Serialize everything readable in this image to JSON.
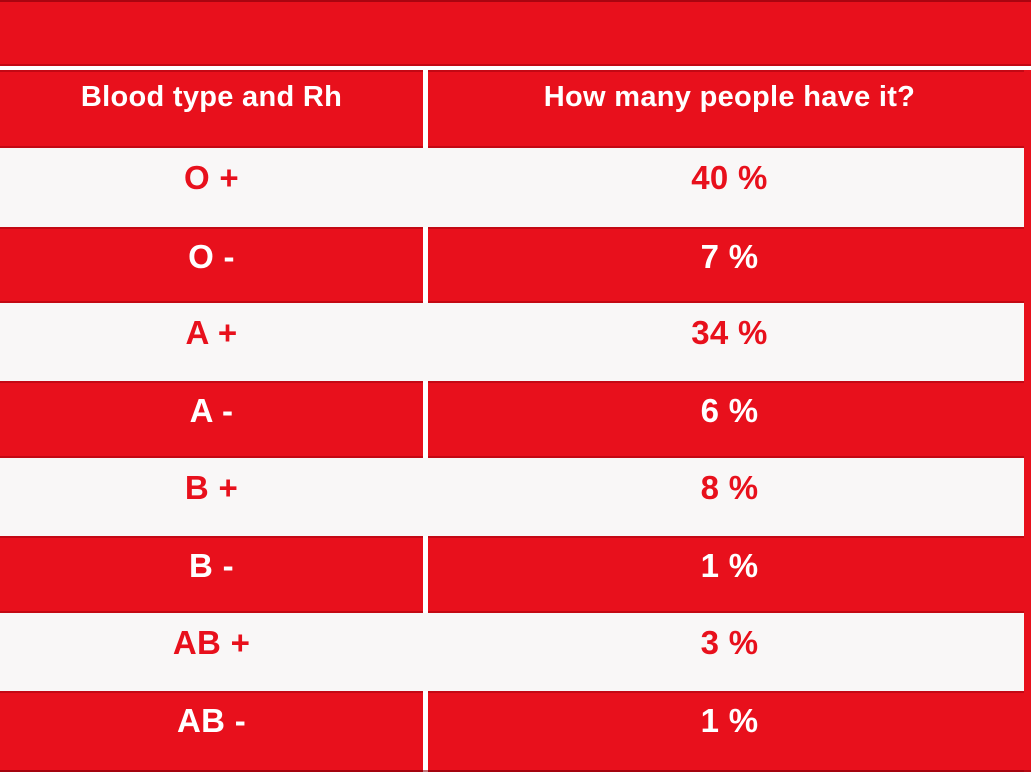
{
  "chart_data": {
    "type": "table",
    "title": "",
    "columns": [
      "Blood type and Rh",
      "How many people have it?"
    ],
    "categories": [
      "O +",
      "O -",
      "A +",
      "A -",
      "B +",
      "B -",
      "AB +",
      "AB -"
    ],
    "values": [
      40,
      7,
      34,
      6,
      8,
      1,
      3,
      1
    ],
    "rows": [
      {
        "type": "O +",
        "value": "40 %",
        "numeric": 40
      },
      {
        "type": "O -",
        "value": "7 %",
        "numeric": 7
      },
      {
        "type": "A +",
        "value": "34 %",
        "numeric": 34
      },
      {
        "type": "A -",
        "value": "6 %",
        "numeric": 6
      },
      {
        "type": "B +",
        "value": "8 %",
        "numeric": 8
      },
      {
        "type": "B -",
        "value": "1 %",
        "numeric": 1
      },
      {
        "type": "AB +",
        "value": "3 %",
        "numeric": 3
      },
      {
        "type": "AB -",
        "value": "1 %",
        "numeric": 1
      }
    ],
    "layout": {
      "row_style": "alternating red and white bands",
      "legend": "none",
      "grid": "off"
    }
  },
  "colors": {
    "band_red": "#e8101c",
    "row_white": "#f9f7f7",
    "divider_white": "#ffffff",
    "edge_dark_red": "#8c000a",
    "text_on_red": "#ffffff",
    "text_on_white": "#e8101c"
  }
}
